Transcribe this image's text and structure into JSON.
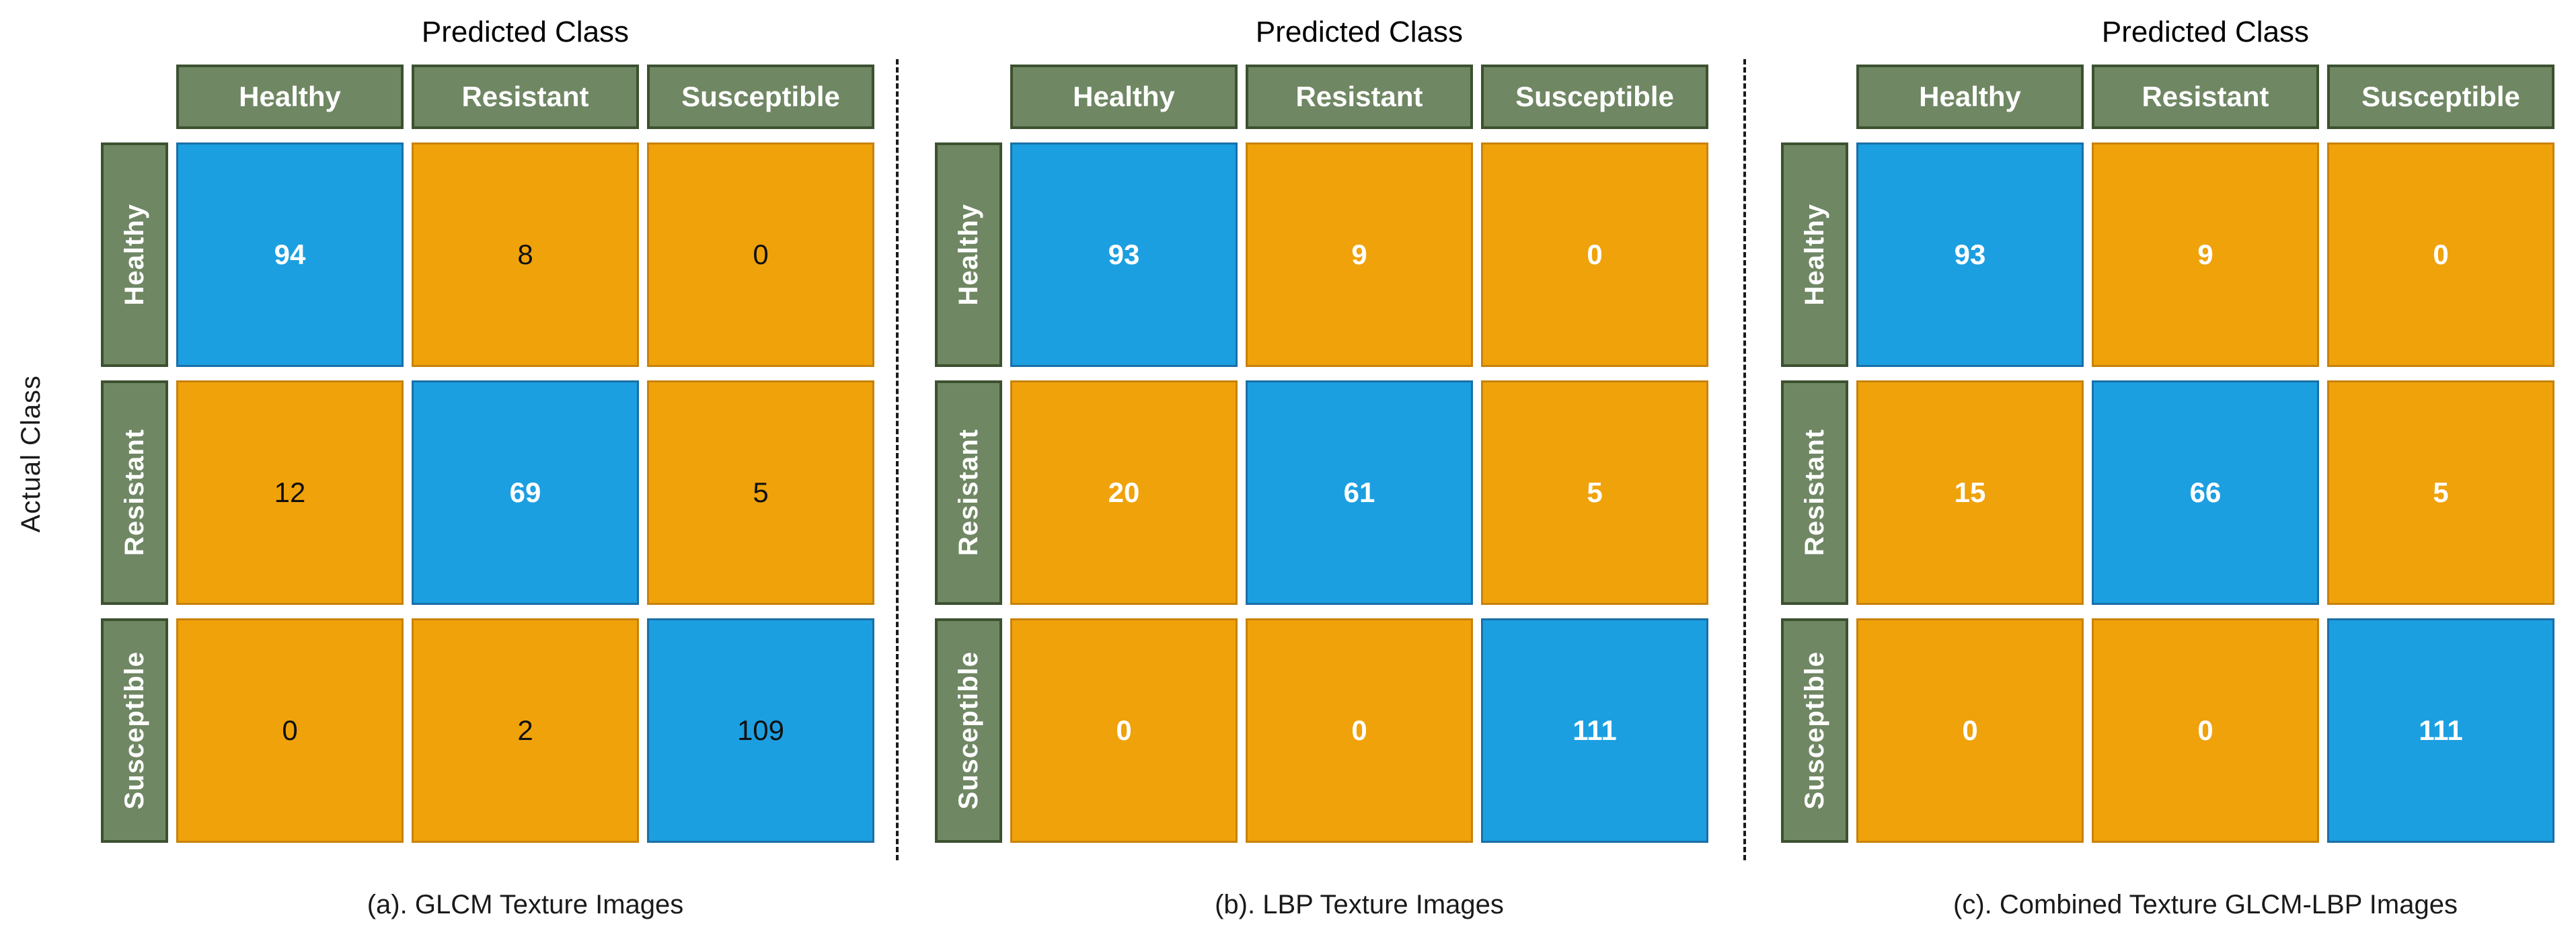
{
  "figure": {
    "predicted_axis_label": "Predicted Class",
    "actual_axis_label": "Actual Class",
    "class_labels": [
      "Healthy",
      "Resistant",
      "Susceptible"
    ],
    "palette": {
      "diag_fill": "#1C9FE0",
      "diag_border": "#1A6FA8",
      "off_fill": "#F0A20B",
      "off_border": "#C8820B",
      "label_fill": "#6F8763",
      "label_border": "#3C5130",
      "label_text": "#FFFFFF",
      "divider": "#1A1A1A"
    },
    "panels": [
      {
        "caption": "(a). GLCM Texture Images",
        "cells": [
          [
            {
              "v": "94",
              "tc": "white"
            },
            {
              "v": "8",
              "tc": "black"
            },
            {
              "v": "0",
              "tc": "black"
            }
          ],
          [
            {
              "v": "12",
              "tc": "black"
            },
            {
              "v": "69",
              "tc": "white"
            },
            {
              "v": "5",
              "tc": "black"
            }
          ],
          [
            {
              "v": "0",
              "tc": "black"
            },
            {
              "v": "2",
              "tc": "black"
            },
            {
              "v": "109",
              "tc": "black"
            }
          ]
        ]
      },
      {
        "caption": "(b). LBP Texture Images",
        "cells": [
          [
            {
              "v": "93",
              "tc": "white"
            },
            {
              "v": "9",
              "tc": "white"
            },
            {
              "v": "0",
              "tc": "white"
            }
          ],
          [
            {
              "v": "20",
              "tc": "white"
            },
            {
              "v": "61",
              "tc": "white"
            },
            {
              "v": "5",
              "tc": "white"
            }
          ],
          [
            {
              "v": "0",
              "tc": "white"
            },
            {
              "v": "0",
              "tc": "white"
            },
            {
              "v": "111",
              "tc": "white"
            }
          ]
        ]
      },
      {
        "caption": "(c). Combined Texture GLCM-LBP Images",
        "cells": [
          [
            {
              "v": "93",
              "tc": "white"
            },
            {
              "v": "9",
              "tc": "white"
            },
            {
              "v": "0",
              "tc": "white"
            }
          ],
          [
            {
              "v": "15",
              "tc": "white"
            },
            {
              "v": "66",
              "tc": "white"
            },
            {
              "v": "5",
              "tc": "white"
            }
          ],
          [
            {
              "v": "0",
              "tc": "white"
            },
            {
              "v": "0",
              "tc": "white"
            },
            {
              "v": "111",
              "tc": "white"
            }
          ]
        ]
      }
    ]
  },
  "chart_data": [
    {
      "type": "heatmap",
      "title": "(a). GLCM Texture Images",
      "xlabel": "Predicted Class",
      "ylabel": "Actual Class",
      "x_categories": [
        "Healthy",
        "Resistant",
        "Susceptible"
      ],
      "y_categories": [
        "Healthy",
        "Resistant",
        "Susceptible"
      ],
      "values": [
        [
          94,
          8,
          0
        ],
        [
          12,
          69,
          5
        ],
        [
          0,
          2,
          109
        ]
      ],
      "legend_position": "none",
      "grid": false,
      "color_rule": "diagonal cells #1C9FE0 (blue), off-diagonal cells #F0A20B (orange), header cells #6F8763 (green)"
    },
    {
      "type": "heatmap",
      "title": "(b). LBP Texture Images",
      "xlabel": "Predicted Class",
      "ylabel": "Actual Class",
      "x_categories": [
        "Healthy",
        "Resistant",
        "Susceptible"
      ],
      "y_categories": [
        "Healthy",
        "Resistant",
        "Susceptible"
      ],
      "values": [
        [
          93,
          9,
          0
        ],
        [
          20,
          61,
          5
        ],
        [
          0,
          0,
          111
        ]
      ],
      "legend_position": "none",
      "grid": false,
      "color_rule": "diagonal cells #1C9FE0 (blue), off-diagonal cells #F0A20B (orange), header cells #6F8763 (green)"
    },
    {
      "type": "heatmap",
      "title": "(c). Combined Texture GLCM-LBP Images",
      "xlabel": "Predicted Class",
      "ylabel": "Actual Class",
      "x_categories": [
        "Healthy",
        "Resistant",
        "Susceptible"
      ],
      "y_categories": [
        "Healthy",
        "Resistant",
        "Susceptible"
      ],
      "values": [
        [
          93,
          9,
          0
        ],
        [
          15,
          66,
          5
        ],
        [
          0,
          0,
          111
        ]
      ],
      "legend_position": "none",
      "grid": false,
      "color_rule": "diagonal cells #1C9FE0 (blue), off-diagonal cells #F0A20B (orange), header cells #6F8763 (green)"
    }
  ]
}
